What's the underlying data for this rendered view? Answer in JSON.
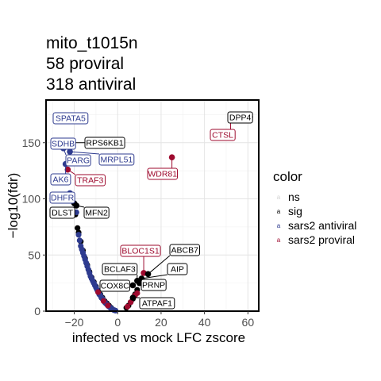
{
  "title_lines": [
    "mito_t1015n",
    "58 proviral",
    "318 antiviral"
  ],
  "chart_data": {
    "type": "scatter",
    "xlabel": "infected vs mock LFC zscore",
    "ylabel": "-log10(fdr)",
    "xlim": [
      -33,
      65
    ],
    "ylim": [
      0,
      188
    ],
    "xticks": [
      -20,
      0,
      20,
      40,
      60
    ],
    "yticks": [
      0,
      50,
      100,
      150
    ],
    "grid": true,
    "legend": {
      "title": "color",
      "placement": "right",
      "items": [
        {
          "label": "ns",
          "color": "#d3d3d3"
        },
        {
          "label": "sig",
          "color": "#000000"
        },
        {
          "label": "sars2 antiviral",
          "color": "#2e3b8f"
        },
        {
          "label": "sars2 proviral",
          "color": "#9e0a2e"
        }
      ]
    },
    "colors": {
      "ns": "#d3d3d3",
      "sig": "#000000",
      "sars2 antiviral": "#2e3b8f",
      "sars2 proviral": "#9e0a2e"
    },
    "labeled_points": [
      {
        "label": "SPATA5",
        "x": -28,
        "y": 173,
        "group": "sars2 antiviral"
      },
      {
        "label": "DPP4",
        "x": 61,
        "y": 173,
        "group": "sig"
      },
      {
        "label": "CTSL",
        "x": 52,
        "y": 173,
        "group": "sars2 proviral"
      },
      {
        "label": "SDHB",
        "x": -26,
        "y": 149,
        "group": "sars2 antiviral"
      },
      {
        "label": "RPS6KB1",
        "x": -24,
        "y": 150,
        "group": "sig"
      },
      {
        "label": "PARG",
        "x": -25,
        "y": 145,
        "group": "sars2 antiviral"
      },
      {
        "label": "MRPL51",
        "x": -22,
        "y": 142,
        "group": "sars2 antiviral"
      },
      {
        "label": "WDR81",
        "x": 25,
        "y": 137,
        "group": "sars2 proviral"
      },
      {
        "label": "AK6",
        "x": -24,
        "y": 131,
        "group": "sars2 antiviral"
      },
      {
        "label": "TRAF3",
        "x": -23,
        "y": 126,
        "group": "sars2 proviral"
      },
      {
        "label": "DHFR",
        "x": -22,
        "y": 105,
        "group": "sars2 antiviral"
      },
      {
        "label": "DLST",
        "x": -20,
        "y": 96,
        "group": "sig"
      },
      {
        "label": "MFN2",
        "x": -19,
        "y": 94,
        "group": "sig"
      },
      {
        "label": "BLOC1S1",
        "x": 12,
        "y": 34,
        "group": "sars2 proviral"
      },
      {
        "label": "ABCB7",
        "x": 14,
        "y": 33,
        "group": "sig"
      },
      {
        "label": "AIP",
        "x": 11,
        "y": 29,
        "group": "sig"
      },
      {
        "label": "BCLAF3",
        "x": 9,
        "y": 27,
        "group": "sig"
      },
      {
        "label": "PRNP",
        "x": 10,
        "y": 25,
        "group": "sig"
      },
      {
        "label": "COX8C",
        "x": 7,
        "y": 23,
        "group": "sig"
      },
      {
        "label": "ATPAF1",
        "x": 7,
        "y": 12,
        "group": "sig"
      }
    ],
    "antiviral_curve": [
      [
        -19,
        88
      ],
      [
        -18,
        68
      ],
      [
        -17.5,
        63
      ],
      [
        -17,
        58
      ],
      [
        -16.5,
        55
      ],
      [
        -16,
        52
      ],
      [
        -15.5,
        49
      ],
      [
        -15,
        46
      ],
      [
        -14.5,
        43
      ],
      [
        -14,
        40
      ],
      [
        -13.5,
        37
      ],
      [
        -13,
        34
      ],
      [
        -12.5,
        31
      ],
      [
        -12,
        29
      ],
      [
        -11.5,
        27
      ],
      [
        -11,
        25
      ],
      [
        -10.5,
        23
      ],
      [
        -10,
        21
      ],
      [
        -9.5,
        19
      ],
      [
        -9,
        17
      ],
      [
        -8.5,
        15
      ],
      [
        -8,
        14
      ],
      [
        -7.5,
        12
      ],
      [
        -7,
        11
      ],
      [
        -6.5,
        9.5
      ],
      [
        -6,
        8
      ],
      [
        -5.5,
        7
      ],
      [
        -5,
        6
      ],
      [
        -4.5,
        5
      ],
      [
        -4,
        4
      ],
      [
        -3.5,
        3.2
      ],
      [
        -3,
        2.5
      ],
      [
        -2.5,
        1.8
      ],
      [
        -2,
        1.2
      ],
      [
        -1.5,
        0.8
      ],
      [
        -1,
        0.5
      ]
    ],
    "sig_curve": [
      [
        -19.5,
        86
      ],
      [
        -18.5,
        74
      ],
      [
        -18,
        70
      ],
      [
        -17,
        62
      ],
      [
        -16,
        54
      ],
      [
        -15,
        47
      ],
      [
        -14,
        41
      ],
      [
        -13,
        35
      ],
      [
        -12,
        30
      ],
      [
        -11,
        26
      ],
      [
        -10,
        22
      ],
      [
        -9,
        18
      ],
      [
        -8,
        15
      ],
      [
        -7,
        12
      ],
      [
        -6,
        9
      ],
      [
        -5,
        7
      ],
      [
        -4,
        5
      ],
      [
        -3,
        3
      ],
      [
        4,
        3
      ],
      [
        5,
        5
      ],
      [
        6,
        8
      ],
      [
        7,
        11
      ],
      [
        8,
        15
      ],
      [
        9,
        19
      ]
    ],
    "proviral_curve": [
      [
        -9,
        17
      ],
      [
        -6.5,
        9
      ],
      [
        -4.5,
        5
      ],
      [
        4.5,
        4
      ],
      [
        6,
        8
      ],
      [
        7.5,
        13
      ],
      [
        8,
        14
      ],
      [
        9,
        16
      ]
    ]
  }
}
